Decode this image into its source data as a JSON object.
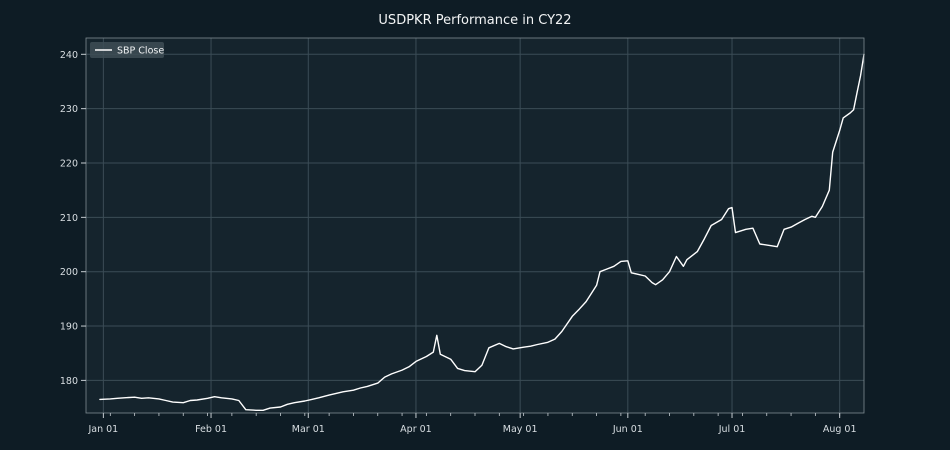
{
  "chart_data": {
    "type": "line",
    "title": "USDPKR Performance in CY22",
    "xlabel": "",
    "ylabel": "",
    "legend": {
      "placement": "top-left",
      "entries": [
        "SBP Close"
      ]
    },
    "grid": true,
    "xlim": [
      "2021-12-27",
      "2022-08-08"
    ],
    "ylim": [
      174,
      243
    ],
    "x_ticks": [
      {
        "date": "2022-01-01",
        "label": "Jan 01"
      },
      {
        "date": "2022-02-01",
        "label": "Feb 01"
      },
      {
        "date": "2022-03-01",
        "label": "Mar 01"
      },
      {
        "date": "2022-04-01",
        "label": "Apr 01"
      },
      {
        "date": "2022-05-01",
        "label": "May 01"
      },
      {
        "date": "2022-06-01",
        "label": "Jun 01"
      },
      {
        "date": "2022-07-01",
        "label": "Jul 01"
      },
      {
        "date": "2022-08-01",
        "label": "Aug 01"
      }
    ],
    "y_ticks": [
      180,
      190,
      200,
      210,
      220,
      230,
      240
    ],
    "line_color": "#ffffff",
    "series": [
      {
        "name": "SBP Close",
        "points": [
          [
            "2021-12-31",
            176.5
          ],
          [
            "2022-01-03",
            176.6
          ],
          [
            "2022-01-05",
            176.7
          ],
          [
            "2022-01-07",
            176.8
          ],
          [
            "2022-01-10",
            176.9
          ],
          [
            "2022-01-12",
            176.7
          ],
          [
            "2022-01-14",
            176.8
          ],
          [
            "2022-01-17",
            176.6
          ],
          [
            "2022-01-19",
            176.3
          ],
          [
            "2022-01-21",
            176.0
          ],
          [
            "2022-01-24",
            175.9
          ],
          [
            "2022-01-26",
            176.3
          ],
          [
            "2022-01-28",
            176.4
          ],
          [
            "2022-01-31",
            176.7
          ],
          [
            "2022-02-02",
            177.0
          ],
          [
            "2022-02-04",
            176.8
          ],
          [
            "2022-02-07",
            176.6
          ],
          [
            "2022-02-09",
            176.3
          ],
          [
            "2022-02-11",
            174.6
          ],
          [
            "2022-02-14",
            174.5
          ],
          [
            "2022-02-16",
            174.5
          ],
          [
            "2022-02-18",
            174.9
          ],
          [
            "2022-02-21",
            175.1
          ],
          [
            "2022-02-23",
            175.6
          ],
          [
            "2022-02-25",
            175.9
          ],
          [
            "2022-02-28",
            176.2
          ],
          [
            "2022-03-02",
            176.5
          ],
          [
            "2022-03-04",
            176.8
          ],
          [
            "2022-03-07",
            177.3
          ],
          [
            "2022-03-09",
            177.6
          ],
          [
            "2022-03-11",
            177.9
          ],
          [
            "2022-03-14",
            178.2
          ],
          [
            "2022-03-16",
            178.6
          ],
          [
            "2022-03-18",
            178.9
          ],
          [
            "2022-03-21",
            179.5
          ],
          [
            "2022-03-23",
            180.6
          ],
          [
            "2022-03-25",
            181.2
          ],
          [
            "2022-03-28",
            181.9
          ],
          [
            "2022-03-30",
            182.5
          ],
          [
            "2022-04-01",
            183.5
          ],
          [
            "2022-04-04",
            184.4
          ],
          [
            "2022-04-06",
            185.2
          ],
          [
            "2022-04-07",
            188.3
          ],
          [
            "2022-04-08",
            184.8
          ],
          [
            "2022-04-11",
            183.9
          ],
          [
            "2022-04-13",
            182.2
          ],
          [
            "2022-04-15",
            181.8
          ],
          [
            "2022-04-18",
            181.6
          ],
          [
            "2022-04-20",
            182.8
          ],
          [
            "2022-04-22",
            186.0
          ],
          [
            "2022-04-25",
            186.8
          ],
          [
            "2022-04-27",
            186.2
          ],
          [
            "2022-04-29",
            185.8
          ],
          [
            "2022-05-02",
            186.1
          ],
          [
            "2022-05-04",
            186.3
          ],
          [
            "2022-05-06",
            186.6
          ],
          [
            "2022-05-09",
            187.0
          ],
          [
            "2022-05-11",
            187.6
          ],
          [
            "2022-05-13",
            189.0
          ],
          [
            "2022-05-16",
            191.8
          ],
          [
            "2022-05-18",
            193.1
          ],
          [
            "2022-05-20",
            194.5
          ],
          [
            "2022-05-23",
            197.5
          ],
          [
            "2022-05-24",
            200.0
          ],
          [
            "2022-05-26",
            200.5
          ],
          [
            "2022-05-28",
            201.0
          ],
          [
            "2022-05-30",
            201.9
          ],
          [
            "2022-06-01",
            202.0
          ],
          [
            "2022-06-02",
            199.8
          ],
          [
            "2022-06-06",
            199.2
          ],
          [
            "2022-06-08",
            198.0
          ],
          [
            "2022-06-09",
            197.6
          ],
          [
            "2022-06-11",
            198.5
          ],
          [
            "2022-06-13",
            200.0
          ],
          [
            "2022-06-15",
            202.8
          ],
          [
            "2022-06-17",
            201.0
          ],
          [
            "2022-06-18",
            202.2
          ],
          [
            "2022-06-21",
            203.7
          ],
          [
            "2022-06-23",
            206.0
          ],
          [
            "2022-06-25",
            208.5
          ],
          [
            "2022-06-28",
            209.6
          ],
          [
            "2022-06-30",
            211.6
          ],
          [
            "2022-07-01",
            211.8
          ],
          [
            "2022-07-02",
            207.2
          ],
          [
            "2022-07-05",
            207.8
          ],
          [
            "2022-07-07",
            208.0
          ],
          [
            "2022-07-09",
            205.1
          ],
          [
            "2022-07-12",
            204.8
          ],
          [
            "2022-07-14",
            204.6
          ],
          [
            "2022-07-16",
            207.8
          ],
          [
            "2022-07-18",
            208.2
          ],
          [
            "2022-07-20",
            208.9
          ],
          [
            "2022-07-22",
            209.6
          ],
          [
            "2022-07-24",
            210.2
          ],
          [
            "2022-07-25",
            210.0
          ],
          [
            "2022-07-27",
            212.0
          ],
          [
            "2022-07-29",
            215.0
          ],
          [
            "2022-07-30",
            222.0
          ],
          [
            "2022-08-01",
            226.0
          ],
          [
            "2022-08-02",
            228.3
          ],
          [
            "2022-08-04",
            229.2
          ],
          [
            "2022-08-05",
            229.8
          ],
          [
            "2022-08-06",
            233.0
          ],
          [
            "2022-08-07",
            236.0
          ],
          [
            "2022-08-08",
            240.0
          ]
        ]
      }
    ]
  }
}
